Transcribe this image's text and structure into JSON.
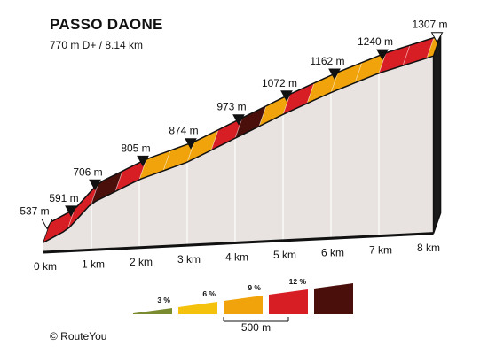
{
  "chart_data": {
    "type": "area",
    "title": "PASSO DAONE",
    "subtitle": "770 m D+ / 8.14 km",
    "x_unit": "km",
    "y_unit": "m",
    "xlim": [
      0,
      8.14
    ],
    "x_tick_labels": [
      "0 km",
      "1 km",
      "2 km",
      "3 km",
      "4 km",
      "5 km",
      "6 km",
      "7 km",
      "8 km"
    ],
    "elevation_points": [
      {
        "km": 0,
        "elevation_m": 537,
        "label": "537 m"
      },
      {
        "km": 0.5,
        "elevation_m": 591,
        "label": "591 m"
      },
      {
        "km": 1,
        "elevation_m": 706,
        "label": "706 m"
      },
      {
        "km": 2,
        "elevation_m": 805,
        "label": "805 m"
      },
      {
        "km": 3,
        "elevation_m": 874,
        "label": "874 m"
      },
      {
        "km": 4,
        "elevation_m": 973,
        "label": "973 m"
      },
      {
        "km": 5,
        "elevation_m": 1072,
        "label": "1072 m"
      },
      {
        "km": 6,
        "elevation_m": 1162,
        "label": "1162 m"
      },
      {
        "km": 7,
        "elevation_m": 1240,
        "label": "1240 m"
      },
      {
        "km": 8.14,
        "elevation_m": 1307,
        "label": "1307 m"
      }
    ],
    "segments": [
      {
        "from_km": 0,
        "to_km": 0.5,
        "gradient_class": "9 %"
      },
      {
        "from_km": 0.5,
        "to_km": 1,
        "gradient_class": "9 %"
      },
      {
        "from_km": 1,
        "to_km": 1.5,
        "gradient_class": "12 %"
      },
      {
        "from_km": 1.5,
        "to_km": 2,
        "gradient_class": "9 %"
      },
      {
        "from_km": 2,
        "to_km": 2.5,
        "gradient_class": "6 %"
      },
      {
        "from_km": 2.5,
        "to_km": 3,
        "gradient_class": "6 %"
      },
      {
        "from_km": 3,
        "to_km": 3.5,
        "gradient_class": "6 %"
      },
      {
        "from_km": 3.5,
        "to_km": 4,
        "gradient_class": "9 %"
      },
      {
        "from_km": 4,
        "to_km": 4.5,
        "gradient_class": "12 %"
      },
      {
        "from_km": 4.5,
        "to_km": 5,
        "gradient_class": "6 %"
      },
      {
        "from_km": 5,
        "to_km": 5.5,
        "gradient_class": "9 %"
      },
      {
        "from_km": 5.5,
        "to_km": 6,
        "gradient_class": "6 %"
      },
      {
        "from_km": 6,
        "to_km": 6.5,
        "gradient_class": "6 %"
      },
      {
        "from_km": 6.5,
        "to_km": 7,
        "gradient_class": "6 %"
      },
      {
        "from_km": 7,
        "to_km": 7.5,
        "gradient_class": "9 %"
      },
      {
        "from_km": 7.5,
        "to_km": 8,
        "gradient_class": "9 %"
      },
      {
        "from_km": 8,
        "to_km": 8.14,
        "gradient_class": "6 %"
      }
    ],
    "legend": {
      "items": [
        {
          "label": "3 %",
          "color": "#7a8a2e"
        },
        {
          "label": "6 %",
          "color": "#f4c20d"
        },
        {
          "label": "9 %",
          "color": "#f0a30a"
        },
        {
          "label": "12 %",
          "color": "#d81e25"
        },
        {
          "label": "",
          "color": "#4a0f0b"
        }
      ],
      "scale_label": "500 m",
      "placement": "bottom-center"
    },
    "colors": {
      "side_wall": "#e8e3e0",
      "start_block": "#b7b2ae",
      "edge": "#111111",
      "grid": "#ffffff"
    }
  },
  "credit": "© RouteYou"
}
